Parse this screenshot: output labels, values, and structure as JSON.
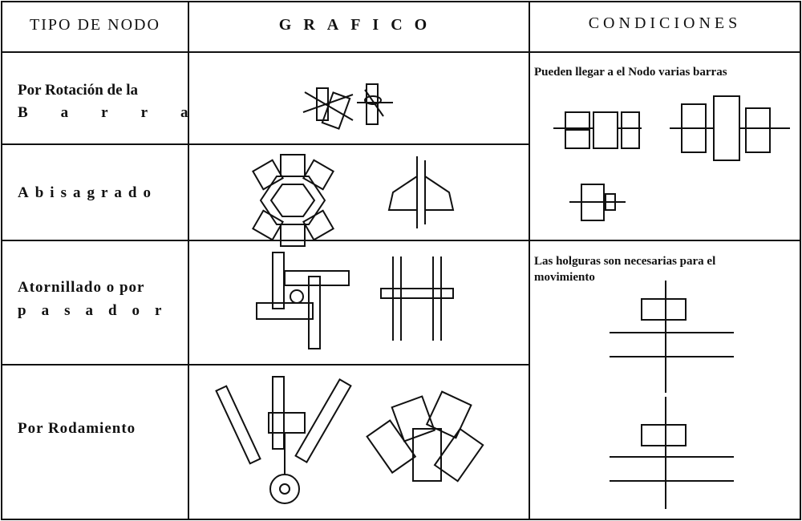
{
  "header": {
    "tipo": "TIPO DE NODO",
    "grafico": "GRAFICO",
    "condiciones": "CONDICIONES"
  },
  "rows": [
    {
      "tipo": [
        "Por Rotación de la",
        "Barra"
      ]
    },
    {
      "tipo": [
        "Abisagrado"
      ]
    },
    {
      "tipo": [
        "Atornillado o por",
        "pasador"
      ]
    },
    {
      "tipo": [
        "Por Rodamiento"
      ]
    }
  ],
  "conditions": [
    "Pueden llegar a el Nodo  varias barras",
    "Las holguras son necesarias para el movimiento"
  ]
}
